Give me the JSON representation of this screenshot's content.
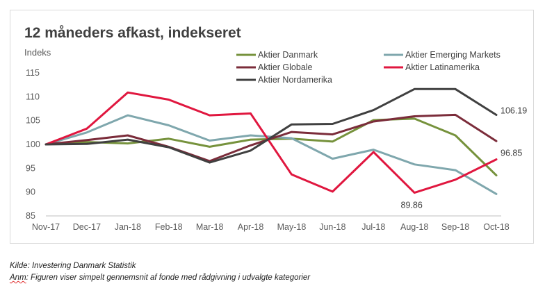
{
  "chart_data": {
    "type": "line",
    "title": "12 måneders afkast, indekseret",
    "ylabel": "Indeks",
    "xlabel": "",
    "ylim": [
      85,
      115
    ],
    "yticks": [
      85,
      90,
      95,
      100,
      105,
      110,
      115
    ],
    "grid": false,
    "legend": "top",
    "categories": [
      "Nov-17",
      "Dec-17",
      "Jan-18",
      "Feb-18",
      "Mar-18",
      "Apr-18",
      "May-18",
      "Jun-18",
      "Jul-18",
      "Aug-18",
      "Sep-18",
      "Oct-18"
    ],
    "series": [
      {
        "name": "Aktier Danmark",
        "color": "#76923c",
        "values": [
          100,
          100.5,
          100.2,
          101.2,
          99.5,
          101,
          101.2,
          100.6,
          105.1,
          105.4,
          101.9,
          93.5
        ]
      },
      {
        "name": "Aktier Emerging Markets",
        "color": "#7fa7ad",
        "values": [
          100,
          102.5,
          106.1,
          104,
          100.8,
          101.9,
          101.3,
          97,
          98.9,
          95.8,
          94.6,
          89.6
        ]
      },
      {
        "name": "Aktier Globale",
        "color": "#7b2c3a",
        "values": [
          100,
          100.9,
          101.9,
          99.5,
          96.5,
          99.8,
          102.6,
          102.1,
          104.8,
          105.9,
          106.2,
          100.7
        ]
      },
      {
        "name": "Aktier Latinamerika",
        "color": "#e0173f",
        "values": [
          100,
          103.3,
          110.9,
          109.4,
          106.1,
          106.5,
          93.7,
          90.1,
          98.4,
          89.86,
          92.6,
          96.85
        ]
      },
      {
        "name": "Aktier Nordamerika",
        "color": "#404040",
        "values": [
          100,
          100.1,
          101,
          99.4,
          96.2,
          98.7,
          104.2,
          104.3,
          107.2,
          111.6,
          111.6,
          106.19
        ]
      }
    ],
    "annotations": [
      {
        "series": 4,
        "index": 11,
        "text": "106.19"
      },
      {
        "series": 3,
        "index": 11,
        "text": "96.85"
      },
      {
        "series": 3,
        "index": 9,
        "text": "89.86"
      }
    ]
  },
  "footnotes": {
    "source_prefix": "Kilde:",
    "source_text": " Investering Danmark Statistik",
    "note_prefix": "Anm",
    "note_text": ": Figuren viser simpelt gennemsnit af fonde med rådgivning i udvalgte kategorier"
  }
}
